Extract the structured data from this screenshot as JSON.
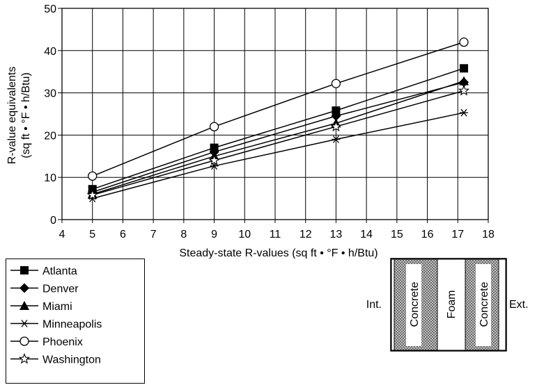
{
  "chart_data": {
    "type": "line",
    "xlabel": "Steady-state R-values (sq ft • °F • h/Btu)",
    "ylabel_line1": "R-value equivalents",
    "ylabel_line2": "(sq ft • °F • h/Btu)",
    "xlim": [
      4,
      18
    ],
    "ylim": [
      0,
      50
    ],
    "x_ticks": [
      4,
      5,
      6,
      7,
      8,
      9,
      10,
      11,
      12,
      13,
      14,
      15,
      16,
      17,
      18
    ],
    "y_ticks": [
      0,
      10,
      20,
      30,
      40,
      50
    ],
    "grid": true,
    "legend_position": "below-left",
    "x": [
      5,
      9,
      13,
      17.2
    ],
    "series": [
      {
        "name": "Atlanta",
        "marker": "filled-square",
        "values": [
          7.2,
          17.0,
          25.8,
          35.8
        ]
      },
      {
        "name": "Denver",
        "marker": "filled-diamond",
        "values": [
          6.5,
          16.0,
          24.5,
          32.5
        ]
      },
      {
        "name": "Miami",
        "marker": "filled-triangle",
        "values": [
          6.0,
          15.0,
          22.8,
          32.8
        ]
      },
      {
        "name": "Minneapolis",
        "marker": "asterisk",
        "values": [
          5.0,
          12.7,
          19.0,
          25.3
        ]
      },
      {
        "name": "Phoenix",
        "marker": "open-circle",
        "values": [
          10.3,
          22.0,
          32.2,
          42.0
        ]
      },
      {
        "name": "Washington",
        "marker": "open-star",
        "values": [
          5.8,
          14.0,
          22.0,
          30.5
        ]
      }
    ]
  },
  "wall_diagram": {
    "left_label": "Int.",
    "right_label": "Ext.",
    "layers": [
      "Concrete",
      "Foam",
      "Concrete"
    ],
    "colors": {
      "concrete_fill": "#9a9a9a",
      "foam_fill": "#ffffff"
    }
  }
}
